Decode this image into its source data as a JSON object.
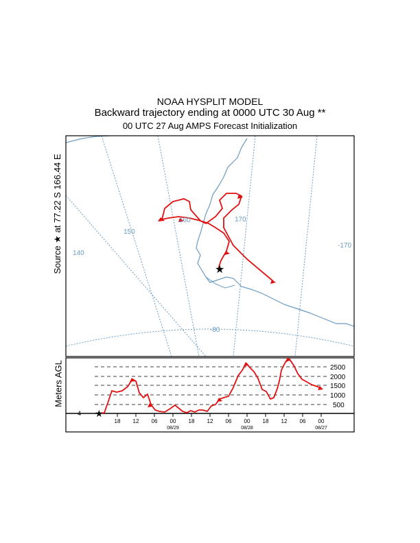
{
  "header": {
    "model": "NOAA HYSPLIT MODEL",
    "description": "Backward trajectory ending at 0000 UTC 30 Aug **",
    "init": "00 UTC 27 Aug    AMPS  Forecast Initialization"
  },
  "source": {
    "label": "Source ★ at   77.22 S  166.44 E"
  },
  "map": {
    "graticule_labels": [
      "140",
      "150",
      "160",
      "170",
      "-170",
      "-80"
    ],
    "line_color": "#6a9bc3",
    "trajectory_color": "#e01010"
  },
  "height_panel": {
    "ylabel": "Meters AGL",
    "levels": [
      "2500",
      "2000",
      "1500",
      "1000",
      "500"
    ],
    "time_ticks": [
      "18",
      "12",
      "06",
      "00",
      "18",
      "12",
      "06",
      "00",
      "18",
      "12",
      "06",
      "00"
    ],
    "dates": [
      "08/29",
      "08/28",
      "08/27"
    ],
    "origin_marker": "4"
  }
}
